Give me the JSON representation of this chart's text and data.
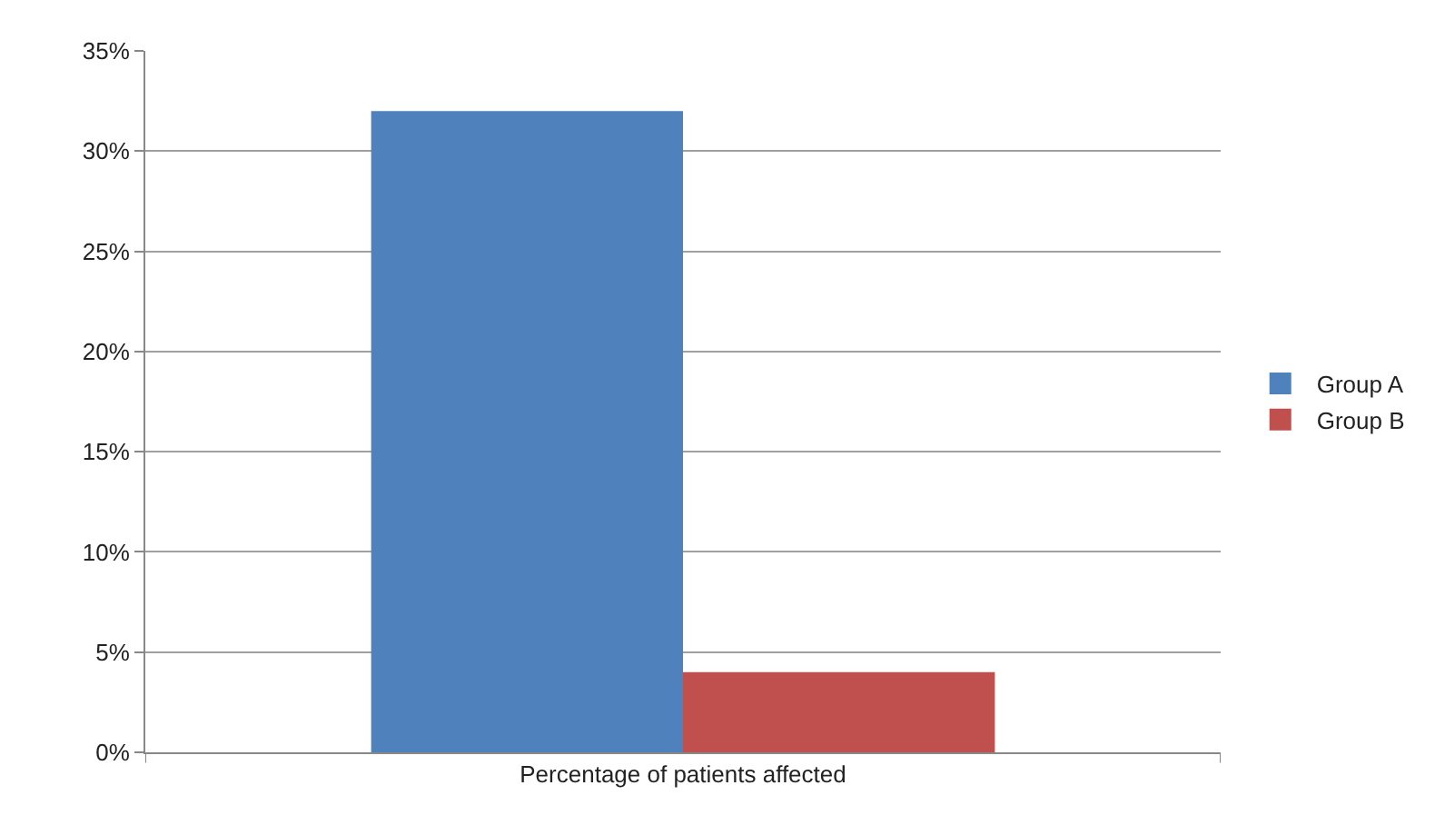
{
  "chart_data": {
    "type": "bar",
    "categories": [
      "Percentage of patients affected"
    ],
    "series": [
      {
        "name": "Group A",
        "color": "#4f81bd",
        "values": [
          32
        ]
      },
      {
        "name": "Group B",
        "color": "#c0504d",
        "values": [
          4
        ]
      }
    ],
    "ylim": [
      0,
      35
    ],
    "yticks": [
      {
        "value": 0,
        "label": "0%"
      },
      {
        "value": 5,
        "label": "5%"
      },
      {
        "value": 10,
        "label": "10%"
      },
      {
        "value": 15,
        "label": "15%"
      },
      {
        "value": 20,
        "label": "20%"
      },
      {
        "value": 25,
        "label": "25%"
      },
      {
        "value": 30,
        "label": "30%"
      },
      {
        "value": 35,
        "label": "35%"
      }
    ],
    "grid": "y",
    "legend": "right"
  }
}
